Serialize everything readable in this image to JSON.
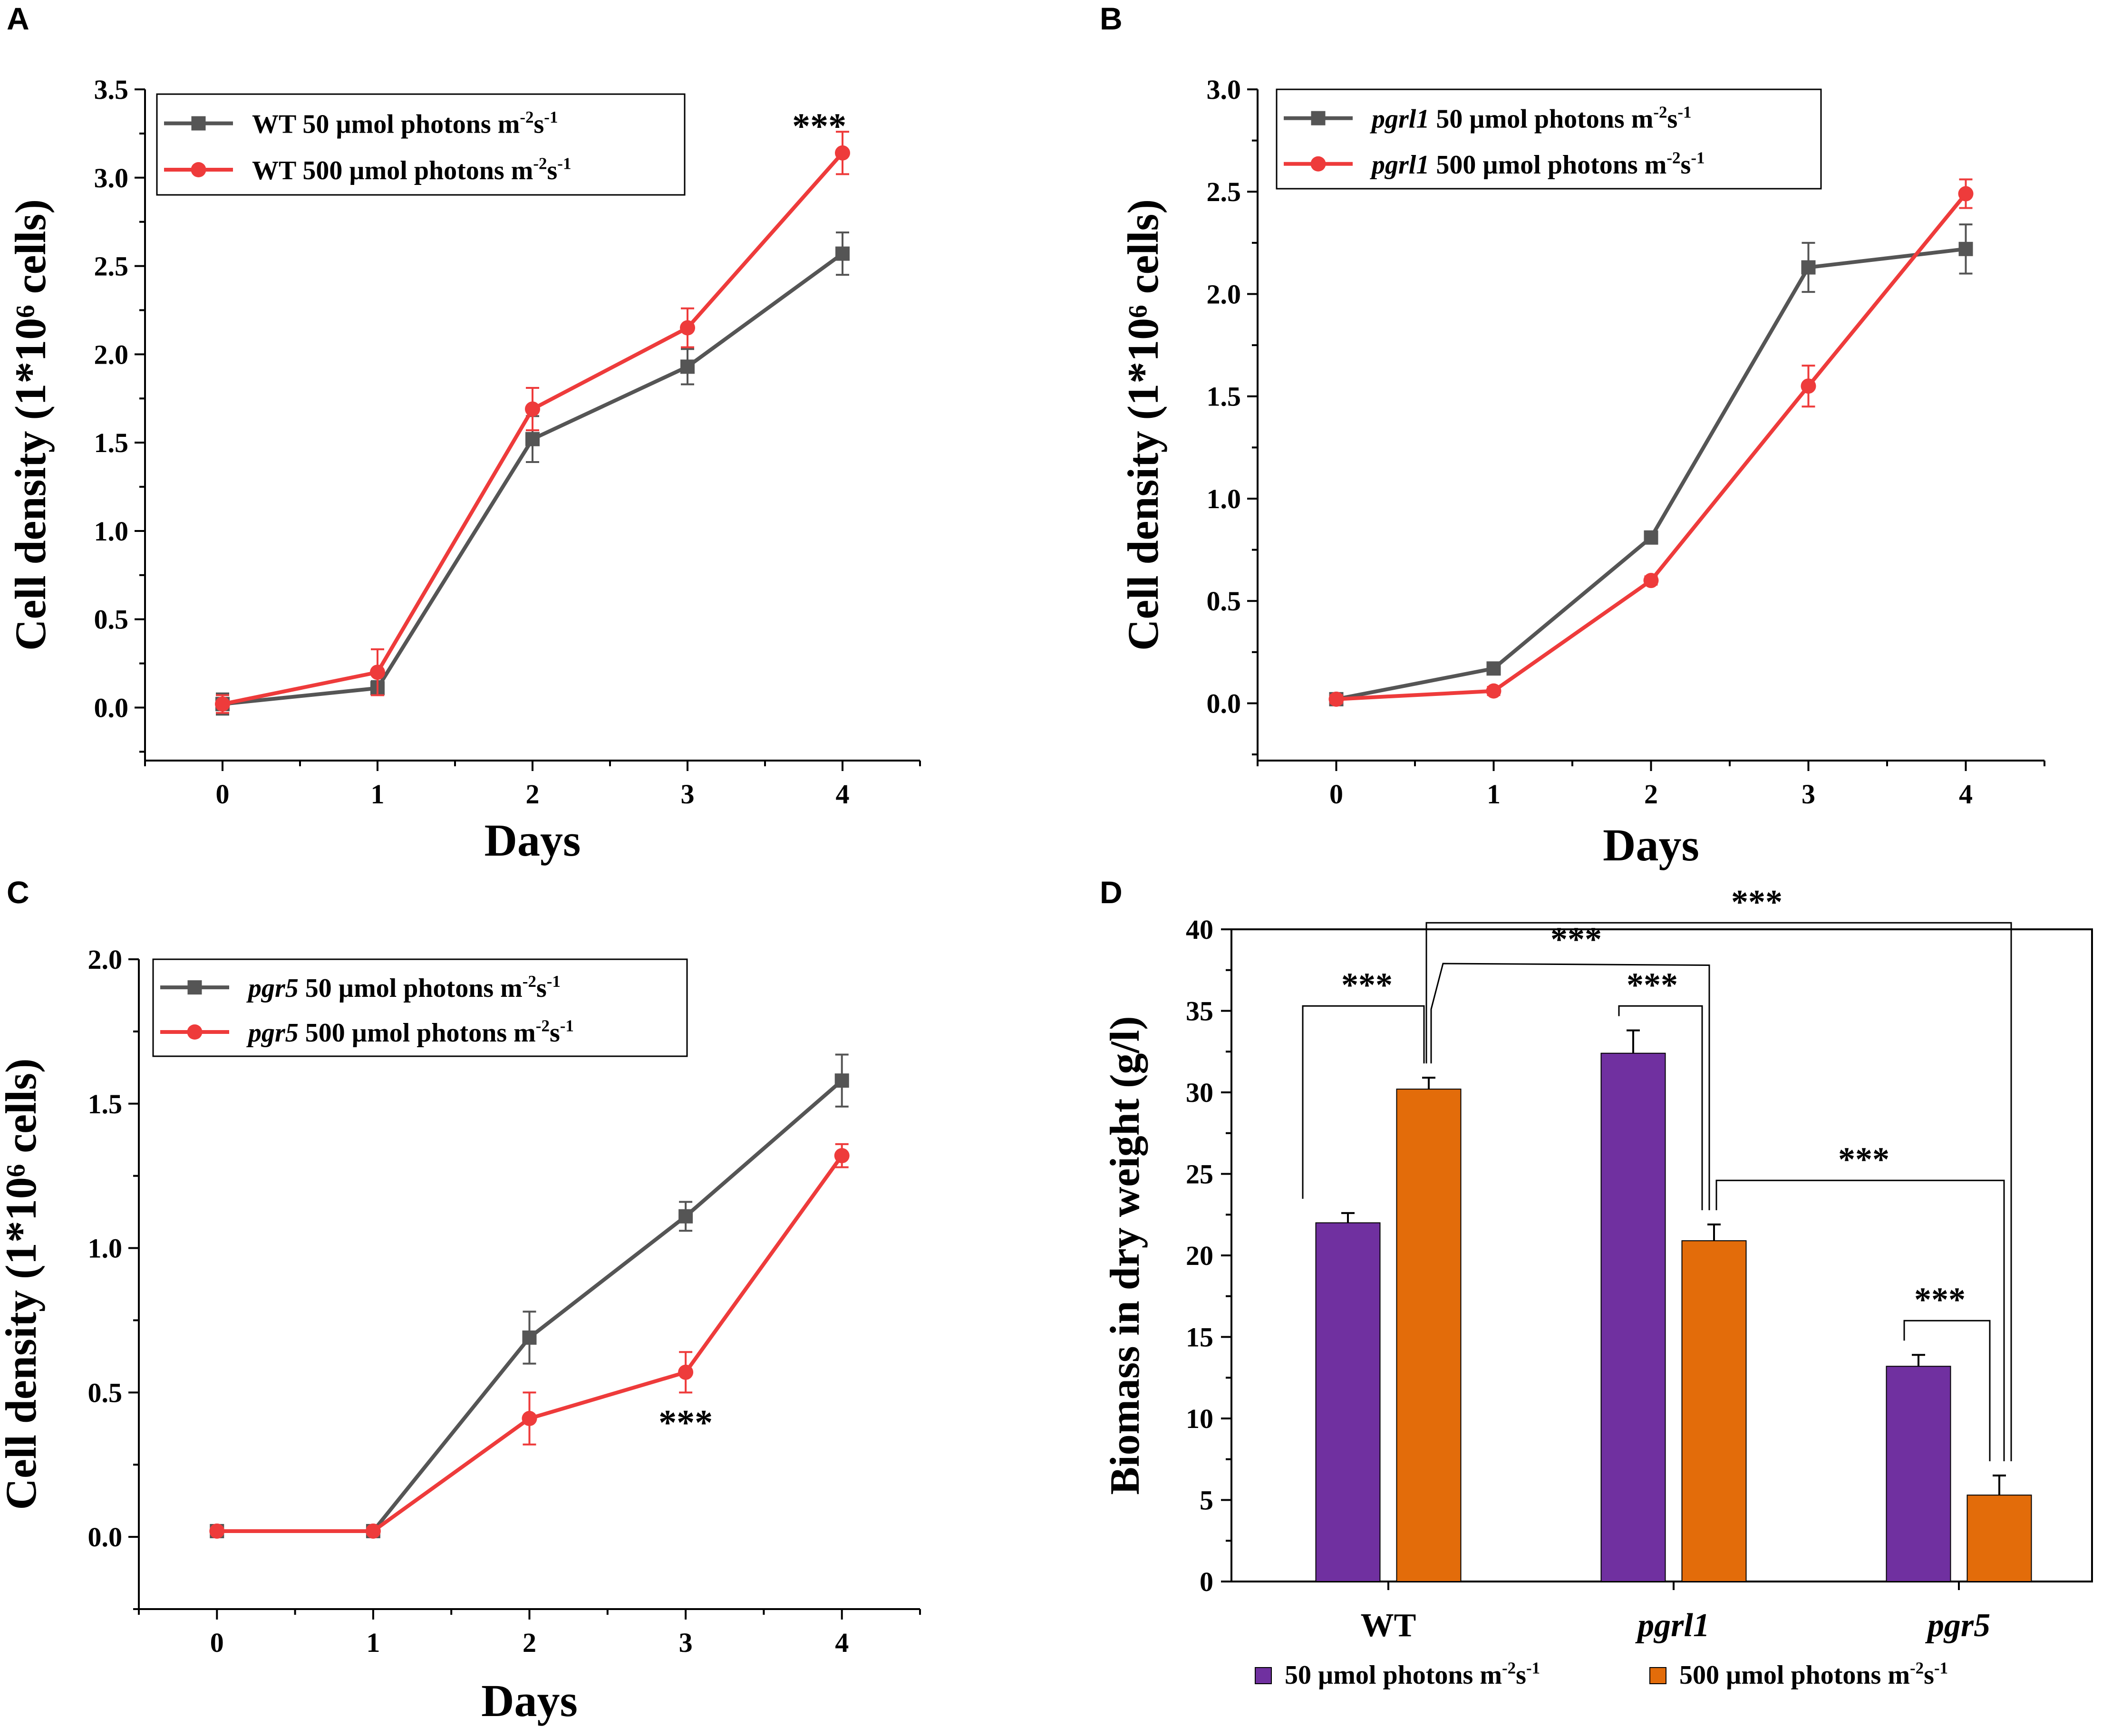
{
  "chart_data": [
    {
      "id": "A",
      "panel_label": "A",
      "type": "line",
      "xlabel": "Days",
      "ylabel": "Cell density (1*10⁶ cells)",
      "categories": [
        "0",
        "1",
        "2",
        "3",
        "4"
      ],
      "x": [
        0,
        1,
        2,
        3,
        4
      ],
      "xlim": [
        -0.5,
        4.5
      ],
      "ylim": [
        -0.3,
        3.5
      ],
      "yticks": [
        0,
        0.5,
        1,
        1.5,
        2,
        2.5,
        3,
        3.5
      ],
      "ytick_labels": [
        "0.0",
        "0.5",
        "1.0",
        "1.5",
        "2.0",
        "2.5",
        "3.0",
        "3.5"
      ],
      "legend_position": "top-left",
      "series": [
        {
          "strain": "WT",
          "strain_italic": false,
          "name": "50 µmol photons m",
          "unit_end": "s",
          "marker": "square",
          "color": "#555555",
          "values": [
            0.02,
            0.11,
            1.52,
            1.93,
            2.57
          ],
          "errors": [
            0.06,
            0.04,
            0.13,
            0.1,
            0.12
          ]
        },
        {
          "strain": "WT",
          "strain_italic": false,
          "name": "500 µmol photons m",
          "unit_end": "s",
          "marker": "circle",
          "color": "#ee3b3b",
          "values": [
            0.02,
            0.2,
            1.69,
            2.15,
            3.14
          ],
          "errors": [
            0.05,
            0.13,
            0.12,
            0.11,
            0.12
          ]
        }
      ],
      "annotations": [
        {
          "text": "***",
          "x": 3.85,
          "y": 3.3
        }
      ]
    },
    {
      "id": "B",
      "panel_label": "B",
      "type": "line",
      "xlabel": "Days",
      "ylabel": "Cell density (1*10⁶ cells)",
      "categories": [
        "0",
        "1",
        "2",
        "3",
        "4"
      ],
      "x": [
        0,
        1,
        2,
        3,
        4
      ],
      "xlim": [
        -0.5,
        4.5
      ],
      "ylim": [
        -0.28,
        3.0
      ],
      "yticks": [
        0,
        0.5,
        1,
        1.5,
        2,
        2.5,
        3
      ],
      "ytick_labels": [
        "0.0",
        "0.5",
        "1.0",
        "1.5",
        "2.0",
        "2.5",
        "3.0"
      ],
      "legend_position": "top-left",
      "series": [
        {
          "strain": "pgrl1",
          "strain_italic": true,
          "name": "50 µmol photons m",
          "unit_end": "s",
          "marker": "square",
          "color": "#555555",
          "values": [
            0.02,
            0.17,
            0.81,
            2.13,
            2.22
          ],
          "errors": [
            0.02,
            0.02,
            0.03,
            0.12,
            0.12
          ]
        },
        {
          "strain": "pgrl1",
          "strain_italic": true,
          "name": "500 µmol photons m",
          "unit_end": "s",
          "marker": "circle",
          "color": "#ee3b3b",
          "values": [
            0.02,
            0.06,
            0.6,
            1.55,
            2.49
          ],
          "errors": [
            0.02,
            0.02,
            0.02,
            0.1,
            0.07
          ]
        }
      ],
      "annotations": []
    },
    {
      "id": "C",
      "panel_label": "C",
      "type": "line",
      "xlabel": "Days",
      "ylabel": "Cell density (1*10⁶ cells)",
      "categories": [
        "0",
        "1",
        "2",
        "3",
        "4"
      ],
      "x": [
        0,
        1,
        2,
        3,
        4
      ],
      "xlim": [
        -0.5,
        4.5
      ],
      "ylim": [
        -0.25,
        2.0
      ],
      "yticks": [
        0,
        0.5,
        1,
        1.5,
        2
      ],
      "ytick_labels": [
        "0.0",
        "0.5",
        "1.0",
        "1.5",
        "2.0"
      ],
      "legend_position": "top-left",
      "series": [
        {
          "strain": "pgr5",
          "strain_italic": true,
          "name": "50 µmol photons m",
          "unit_end": "s",
          "marker": "square",
          "color": "#555555",
          "values": [
            0.02,
            0.02,
            0.69,
            1.11,
            1.58
          ],
          "errors": [
            0.01,
            0.01,
            0.09,
            0.05,
            0.09
          ]
        },
        {
          "strain": "pgr5",
          "strain_italic": true,
          "name": "500 µmol photons m",
          "unit_end": "s",
          "marker": "circle",
          "color": "#ee3b3b",
          "values": [
            0.02,
            0.02,
            0.41,
            0.57,
            1.32
          ],
          "errors": [
            0.01,
            0.01,
            0.09,
            0.07,
            0.04
          ]
        }
      ],
      "annotations": [
        {
          "text": "***",
          "x": 3.0,
          "y": 0.4
        }
      ]
    },
    {
      "id": "D",
      "panel_label": "D",
      "type": "bar",
      "xlabel": "",
      "ylabel": "Biomass in dry weight (g/l)",
      "categories": [
        "WT",
        "pgrl1",
        "pgr5"
      ],
      "categories_italic": [
        false,
        true,
        true
      ],
      "ylim": [
        0,
        40
      ],
      "yticks": [
        0,
        5,
        10,
        15,
        20,
        25,
        30,
        35,
        40
      ],
      "ytick_labels": [
        "0",
        "5",
        "10",
        "15",
        "20",
        "25",
        "30",
        "35",
        "40"
      ],
      "legend_position": "bottom",
      "series": [
        {
          "name": "50 µmol photons m",
          "unit_end": "s",
          "color": "#7030a0",
          "values": [
            22.0,
            32.4,
            13.2
          ],
          "errors": [
            0.6,
            1.4,
            0.7
          ]
        },
        {
          "name": "500 µmol photons m",
          "unit_end": "s",
          "color": "#e36c0a",
          "values": [
            30.2,
            20.9,
            5.3
          ],
          "errors": [
            0.7,
            1.0,
            1.2
          ]
        }
      ],
      "significance": [
        {
          "text": "***",
          "from": [
            0,
            0
          ],
          "to": [
            0,
            1
          ],
          "y": 35.3
        },
        {
          "text": "***",
          "from": [
            1,
            0
          ],
          "to": [
            1,
            1
          ],
          "y": 35.3
        },
        {
          "text": "***",
          "from": [
            2,
            0
          ],
          "to": [
            2,
            1
          ],
          "y": 16.0
        },
        {
          "text": "***",
          "from": [
            0,
            1
          ],
          "to": [
            1,
            1
          ],
          "y": 38.1
        },
        {
          "text": "***",
          "from": [
            0,
            1
          ],
          "to": [
            2,
            1
          ],
          "y": 40.4
        },
        {
          "text": "***",
          "from": [
            1,
            1
          ],
          "to": [
            2,
            1
          ],
          "y": 24.6
        }
      ]
    }
  ],
  "unit_superscripts": {
    "m": "-2",
    "s": "-1"
  }
}
